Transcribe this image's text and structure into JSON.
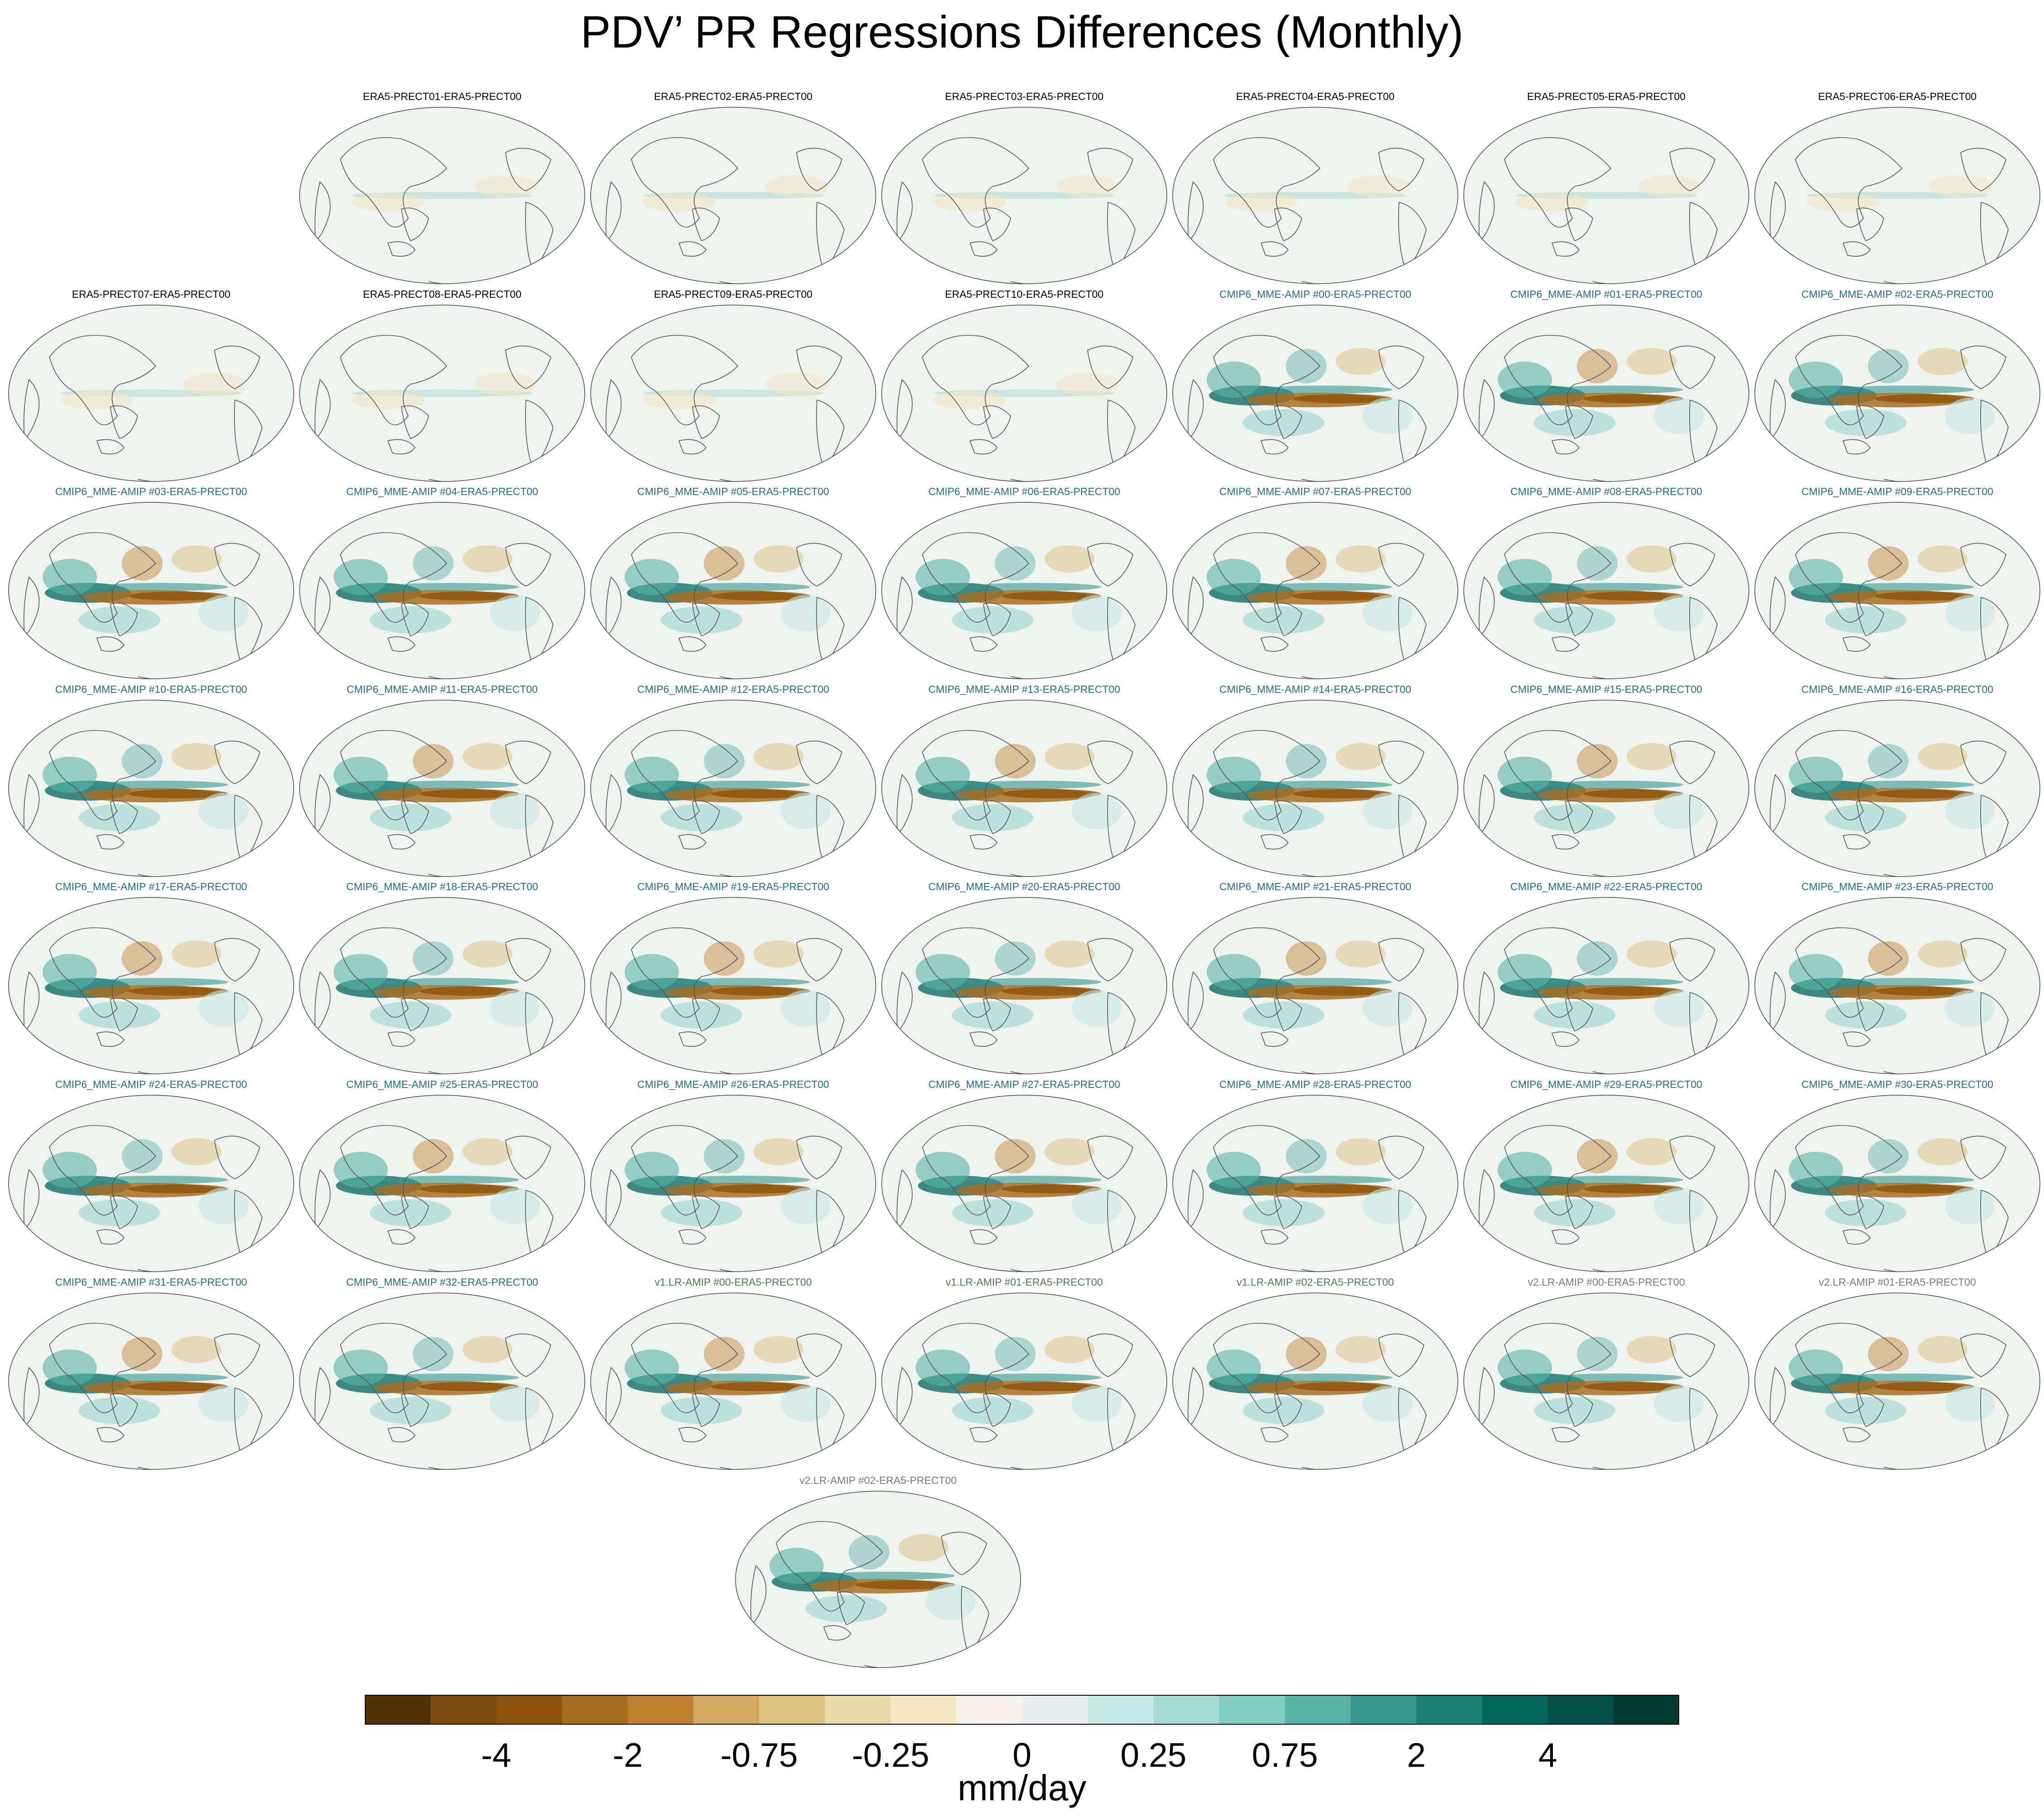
{
  "chart_data": {
    "type": "map-panels",
    "title": "PDV’ PR Regressions Differences (Monthly)",
    "panels": [
      {
        "label": "ERA5-PRECT01-ERA5-PRECT00",
        "group": "ERA5"
      },
      {
        "label": "ERA5-PRECT02-ERA5-PRECT00",
        "group": "ERA5"
      },
      {
        "label": "ERA5-PRECT03-ERA5-PRECT00",
        "group": "ERA5"
      },
      {
        "label": "ERA5-PRECT04-ERA5-PRECT00",
        "group": "ERA5"
      },
      {
        "label": "ERA5-PRECT05-ERA5-PRECT00",
        "group": "ERA5"
      },
      {
        "label": "ERA5-PRECT06-ERA5-PRECT00",
        "group": "ERA5"
      },
      {
        "label": "ERA5-PRECT07-ERA5-PRECT00",
        "group": "ERA5"
      },
      {
        "label": "ERA5-PRECT08-ERA5-PRECT00",
        "group": "ERA5"
      },
      {
        "label": "ERA5-PRECT09-ERA5-PRECT00",
        "group": "ERA5"
      },
      {
        "label": "ERA5-PRECT10-ERA5-PRECT00",
        "group": "ERA5"
      },
      {
        "label": "CMIP6_MME-AMIP  #00-ERA5-PRECT00",
        "group": "CMIP6"
      },
      {
        "label": "CMIP6_MME-AMIP  #01-ERA5-PRECT00",
        "group": "CMIP6"
      },
      {
        "label": "CMIP6_MME-AMIP  #02-ERA5-PRECT00",
        "group": "CMIP6"
      },
      {
        "label": "CMIP6_MME-AMIP  #03-ERA5-PRECT00",
        "group": "CMIP6"
      },
      {
        "label": "CMIP6_MME-AMIP  #04-ERA5-PRECT00",
        "group": "CMIP6"
      },
      {
        "label": "CMIP6_MME-AMIP  #05-ERA5-PRECT00",
        "group": "CMIP6"
      },
      {
        "label": "CMIP6_MME-AMIP  #06-ERA5-PRECT00",
        "group": "CMIP6"
      },
      {
        "label": "CMIP6_MME-AMIP  #07-ERA5-PRECT00",
        "group": "CMIP6"
      },
      {
        "label": "CMIP6_MME-AMIP  #08-ERA5-PRECT00",
        "group": "CMIP6"
      },
      {
        "label": "CMIP6_MME-AMIP  #09-ERA5-PRECT00",
        "group": "CMIP6"
      },
      {
        "label": "CMIP6_MME-AMIP  #10-ERA5-PRECT00",
        "group": "CMIP6"
      },
      {
        "label": "CMIP6_MME-AMIP  #11-ERA5-PRECT00",
        "group": "CMIP6"
      },
      {
        "label": "CMIP6_MME-AMIP  #12-ERA5-PRECT00",
        "group": "CMIP6"
      },
      {
        "label": "CMIP6_MME-AMIP  #13-ERA5-PRECT00",
        "group": "CMIP6"
      },
      {
        "label": "CMIP6_MME-AMIP  #14-ERA5-PRECT00",
        "group": "CMIP6"
      },
      {
        "label": "CMIP6_MME-AMIP  #15-ERA5-PRECT00",
        "group": "CMIP6"
      },
      {
        "label": "CMIP6_MME-AMIP  #16-ERA5-PRECT00",
        "group": "CMIP6"
      },
      {
        "label": "CMIP6_MME-AMIP  #17-ERA5-PRECT00",
        "group": "CMIP6"
      },
      {
        "label": "CMIP6_MME-AMIP  #18-ERA5-PRECT00",
        "group": "CMIP6"
      },
      {
        "label": "CMIP6_MME-AMIP  #19-ERA5-PRECT00",
        "group": "CMIP6"
      },
      {
        "label": "CMIP6_MME-AMIP  #20-ERA5-PRECT00",
        "group": "CMIP6"
      },
      {
        "label": "CMIP6_MME-AMIP  #21-ERA5-PRECT00",
        "group": "CMIP6"
      },
      {
        "label": "CMIP6_MME-AMIP  #22-ERA5-PRECT00",
        "group": "CMIP6"
      },
      {
        "label": "CMIP6_MME-AMIP  #23-ERA5-PRECT00",
        "group": "CMIP6"
      },
      {
        "label": "CMIP6_MME-AMIP  #24-ERA5-PRECT00",
        "group": "CMIP6"
      },
      {
        "label": "CMIP6_MME-AMIP  #25-ERA5-PRECT00",
        "group": "CMIP6"
      },
      {
        "label": "CMIP6_MME-AMIP  #26-ERA5-PRECT00",
        "group": "CMIP6"
      },
      {
        "label": "CMIP6_MME-AMIP  #27-ERA5-PRECT00",
        "group": "CMIP6"
      },
      {
        "label": "CMIP6_MME-AMIP  #28-ERA5-PRECT00",
        "group": "CMIP6"
      },
      {
        "label": "CMIP6_MME-AMIP  #29-ERA5-PRECT00",
        "group": "CMIP6"
      },
      {
        "label": "CMIP6_MME-AMIP  #30-ERA5-PRECT00",
        "group": "CMIP6"
      },
      {
        "label": "CMIP6_MME-AMIP  #31-ERA5-PRECT00",
        "group": "CMIP6"
      },
      {
        "label": "CMIP6_MME-AMIP  #32-ERA5-PRECT00",
        "group": "CMIP6"
      },
      {
        "label": "v1.LR-AMIP  #00-ERA5-PRECT00",
        "group": "v1"
      },
      {
        "label": "v1.LR-AMIP  #01-ERA5-PRECT00",
        "group": "v1"
      },
      {
        "label": "v1.LR-AMIP  #02-ERA5-PRECT00",
        "group": "v1"
      },
      {
        "label": "v2.LR-AMIP  #00-ERA5-PRECT00",
        "group": "v2"
      },
      {
        "label": "v2.LR-AMIP  #01-ERA5-PRECT00",
        "group": "v2"
      },
      {
        "label": "v2.LR-AMIP  #02-ERA5-PRECT00",
        "group": "v2"
      }
    ],
    "group_colors": {
      "ERA5": "#000000",
      "CMIP6": "#1f6f8b",
      "v1": "#4e7a4e",
      "v2": "#7a7a7a"
    },
    "colorbar": {
      "colors": [
        "#543005",
        "#7a4a0e",
        "#8c510a",
        "#a96d22",
        "#bf812d",
        "#d4a862",
        "#dfc27d",
        "#ecd9a8",
        "#f6e8c3",
        "#f5f1e8",
        "#e6f1ef",
        "#c7eae5",
        "#a6dcd3",
        "#80cdc1",
        "#5ab4a6",
        "#35978f",
        "#1b7f75",
        "#01665e",
        "#014f46",
        "#003c30"
      ],
      "tick_labels": [
        "-4",
        "-2",
        "-0.75",
        "-0.25",
        "0",
        "0.25",
        "0.75",
        "2",
        "4"
      ],
      "tick_boundaries": [
        2,
        4,
        6,
        8,
        10,
        12,
        14,
        16,
        18
      ],
      "units": "mm/day"
    }
  }
}
